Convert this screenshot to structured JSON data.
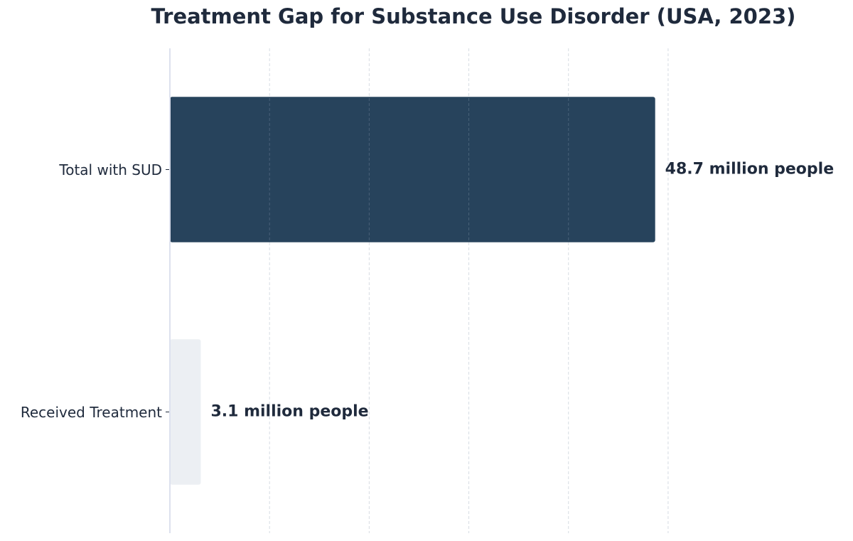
{
  "chart_data": {
    "type": "barh",
    "title": "Treatment Gap for Substance Use Disorder (USA, 2023)",
    "categories": [
      "Total with SUD",
      "Received Treatment"
    ],
    "values": [
      48.7,
      3.1
    ],
    "value_labels": [
      "48.7 million people",
      "3.1 million people"
    ],
    "colors": [
      "#27435c",
      "#eceff3"
    ],
    "xlim": [
      0,
      55
    ],
    "xticks": [
      0,
      10,
      20,
      30,
      40,
      50
    ],
    "grid": true
  }
}
